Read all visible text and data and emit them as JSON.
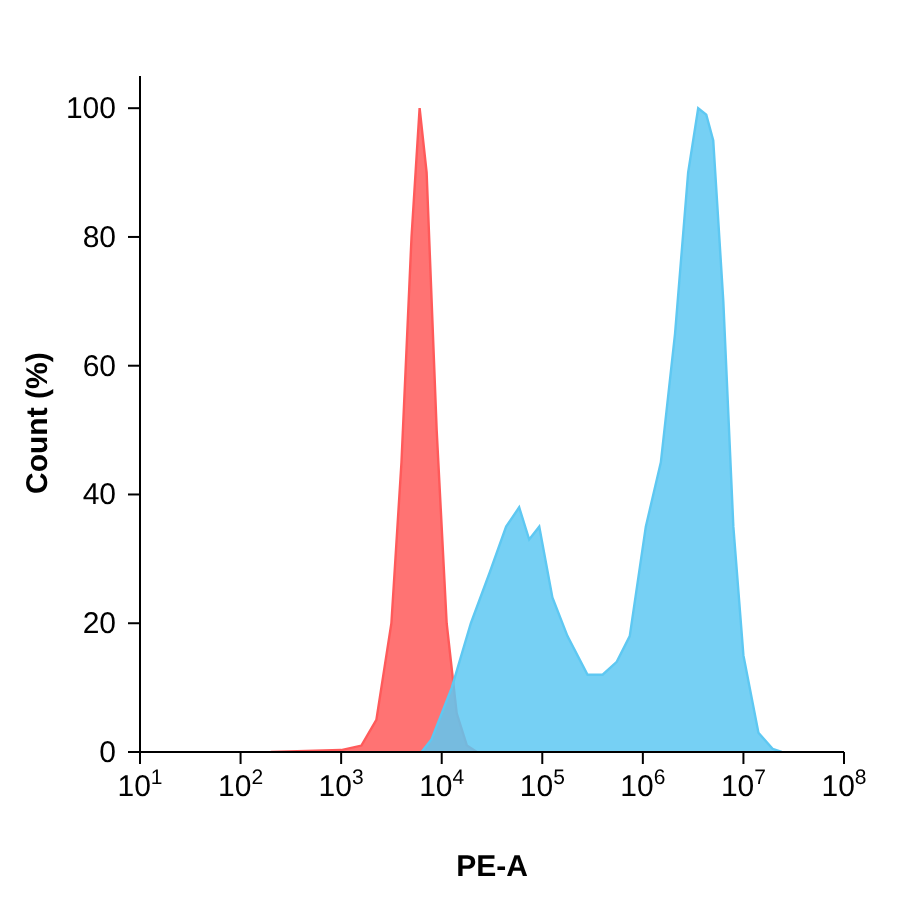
{
  "chart_data": {
    "type": "area",
    "xlabel": "PE-A",
    "ylabel": "Count (%)",
    "log": "x",
    "xlim": [
      10,
      100000000
    ],
    "xticks": [
      {
        "value": 10,
        "label": "10$^{1}$"
      },
      {
        "value": 100,
        "label": "10$^{2}$"
      },
      {
        "value": 1000,
        "label": "10$^{3}$"
      },
      {
        "value": 10000,
        "label": "10$^{4}$"
      },
      {
        "value": 100000,
        "label": "10$^{5}$"
      },
      {
        "value": 1000000,
        "label": "10$^{6}$"
      },
      {
        "value": 10000000,
        "label": "10$^{7}$"
      },
      {
        "value": 100000000,
        "label": "10$^{8}$"
      }
    ],
    "ylim": [
      0,
      105
    ],
    "yticks": [
      0,
      20,
      40,
      60,
      80,
      100
    ],
    "grid": false,
    "series": [
      {
        "color": "#ff5a5a",
        "x": [
          200,
          1000,
          1590,
          2240,
          3160,
          3980,
          5010,
          6030,
          7080,
          8910,
          11200,
          14100,
          17800,
          22400
        ],
        "values": [
          0,
          0.3,
          1,
          5,
          20,
          45,
          80,
          100,
          90,
          50,
          20,
          6,
          1,
          0
        ]
      },
      {
        "color": "#5ec8f2",
        "x": [
          6310,
          7940,
          12600,
          19500,
          30200,
          43700,
          58900,
          74100,
          93300,
          126000,
          178000,
          282000,
          398000,
          550000,
          741000,
          1070000,
          1510000,
          2090000,
          2820000,
          3550000,
          4270000,
          5010000,
          6310000,
          7940000,
          10000000,
          14100000,
          19500000,
          24000000
        ],
        "values": [
          0,
          2,
          10,
          20,
          28,
          35,
          38,
          33,
          35,
          24,
          18,
          12,
          12,
          14,
          18,
          35,
          45,
          65,
          90,
          100,
          99,
          95,
          70,
          35,
          15,
          3,
          0.5,
          0
        ]
      }
    ]
  }
}
